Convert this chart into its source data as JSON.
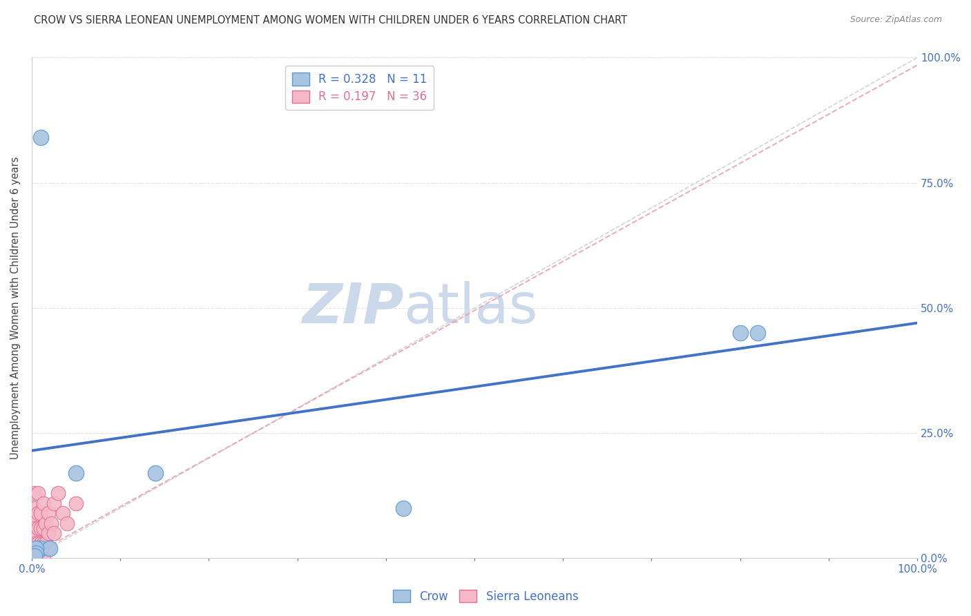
{
  "title": "CROW VS SIERRA LEONEAN UNEMPLOYMENT AMONG WOMEN WITH CHILDREN UNDER 6 YEARS CORRELATION CHART",
  "source": "Source: ZipAtlas.com",
  "ylabel": "Unemployment Among Women with Children Under 6 years",
  "xlabel": "",
  "crow_R": 0.328,
  "crow_N": 11,
  "sl_R": 0.197,
  "sl_N": 36,
  "crow_points": [
    [
      0.01,
      0.84
    ],
    [
      0.05,
      0.17
    ],
    [
      0.14,
      0.17
    ],
    [
      0.42,
      0.1
    ],
    [
      0.8,
      0.45
    ],
    [
      0.82,
      0.45
    ],
    [
      0.01,
      0.02
    ],
    [
      0.02,
      0.02
    ],
    [
      0.005,
      0.02
    ],
    [
      0.005,
      0.01
    ],
    [
      0.003,
      0.005
    ]
  ],
  "sl_points": [
    [
      0.003,
      0.13
    ],
    [
      0.003,
      0.1
    ],
    [
      0.003,
      0.08
    ],
    [
      0.003,
      0.06
    ],
    [
      0.003,
      0.04
    ],
    [
      0.004,
      0.03
    ],
    [
      0.004,
      0.02
    ],
    [
      0.004,
      0.01
    ],
    [
      0.004,
      0.005
    ],
    [
      0.004,
      0.001
    ],
    [
      0.007,
      0.13
    ],
    [
      0.007,
      0.09
    ],
    [
      0.007,
      0.06
    ],
    [
      0.007,
      0.03
    ],
    [
      0.007,
      0.01
    ],
    [
      0.007,
      0.001
    ],
    [
      0.01,
      0.09
    ],
    [
      0.01,
      0.06
    ],
    [
      0.01,
      0.03
    ],
    [
      0.01,
      0.01
    ],
    [
      0.013,
      0.11
    ],
    [
      0.013,
      0.06
    ],
    [
      0.013,
      0.03
    ],
    [
      0.013,
      0.001
    ],
    [
      0.016,
      0.07
    ],
    [
      0.016,
      0.03
    ],
    [
      0.019,
      0.09
    ],
    [
      0.019,
      0.05
    ],
    [
      0.019,
      0.02
    ],
    [
      0.022,
      0.07
    ],
    [
      0.025,
      0.11
    ],
    [
      0.025,
      0.05
    ],
    [
      0.03,
      0.13
    ],
    [
      0.035,
      0.09
    ],
    [
      0.04,
      0.07
    ],
    [
      0.05,
      0.11
    ]
  ],
  "crow_color": "#a8c4e0",
  "sl_color": "#f5b8c8",
  "crow_edge_color": "#5b9bd5",
  "sl_edge_color": "#e07090",
  "crow_line_color": "#4472c4",
  "sl_line_color": "#e8a0b0",
  "ref_line_color": "#c8c8c8",
  "grid_color": "#d8d8d8",
  "tick_color": "#4472c4",
  "background_color": "#ffffff",
  "watermark_color": "#ccd9ea",
  "crow_reg_intercept": 0.215,
  "crow_reg_slope": 0.255,
  "sl_reg_intercept": 0.005,
  "sl_reg_slope": 0.98,
  "xlim": [
    0,
    1
  ],
  "ylim": [
    0,
    1
  ],
  "yticks": [
    0,
    0.25,
    0.5,
    0.75,
    1.0
  ],
  "ytick_labels": [
    "0.0%",
    "25.0%",
    "50.0%",
    "75.0%",
    "100.0%"
  ],
  "xtick_labels_show": [
    "0.0%",
    "",
    "",
    "",
    "",
    "",
    "",
    "",
    "",
    "",
    "100.0%"
  ]
}
